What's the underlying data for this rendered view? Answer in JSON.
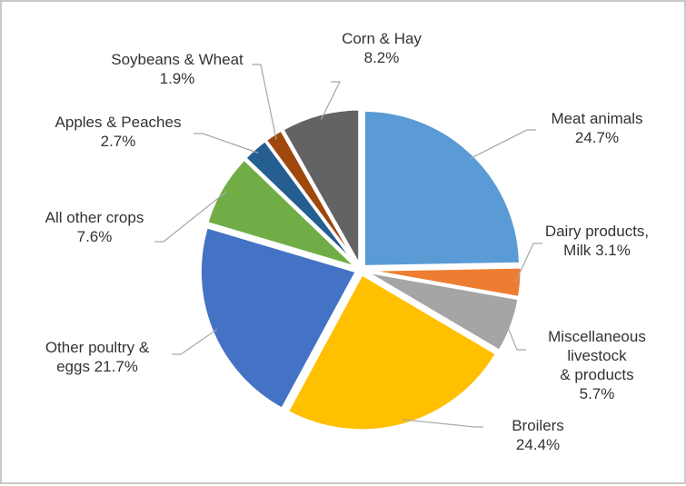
{
  "chart_data": {
    "type": "pie",
    "categories": [
      "Meat animals",
      "Dairy products, Milk",
      "Miscellaneous livestock & products",
      "Broilers",
      "Other poultry & eggs",
      "All other crops",
      "Apples & Peaches",
      "Soybeans & Wheat",
      "Corn & Hay"
    ],
    "values": [
      24.7,
      3.1,
      5.7,
      24.4,
      21.7,
      7.6,
      2.7,
      1.9,
      8.2
    ],
    "unit": "%",
    "colors": [
      "#5B9BD5",
      "#ED7D31",
      "#A5A5A5",
      "#FFC000",
      "#4472C4",
      "#70AD47",
      "#255E91",
      "#9E480E",
      "#636363"
    ],
    "labels": [
      {
        "lines": [
          "Meat animals",
          "24.7%"
        ]
      },
      {
        "lines": [
          "Dairy products,",
          "Milk 3.1%"
        ]
      },
      {
        "lines": [
          "Miscellaneous",
          "livestock",
          "& products",
          "5.7%"
        ]
      },
      {
        "lines": [
          "Broilers",
          "24.4%"
        ]
      },
      {
        "lines": [
          "Other poultry &",
          "eggs 21.7%"
        ]
      },
      {
        "lines": [
          "All other crops",
          "7.6%"
        ]
      },
      {
        "lines": [
          "Apples & Peaches",
          "2.7%"
        ]
      },
      {
        "lines": [
          "Soybeans & Wheat",
          "1.9%"
        ]
      },
      {
        "lines": [
          "Corn & Hay",
          "8.2%"
        ]
      }
    ],
    "start_angle": "12 o'clock",
    "direction": "clockwise",
    "legend": "none",
    "exploded": true
  }
}
